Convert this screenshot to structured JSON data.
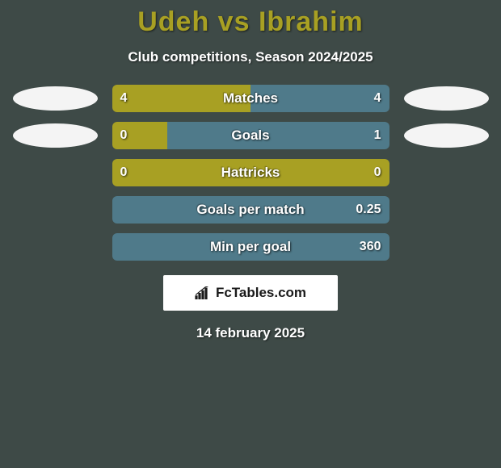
{
  "background_color": "#3e4a47",
  "title": {
    "text": "Udeh vs Ibrahim",
    "color": "#a8a023",
    "fontsize": 34
  },
  "subtitle": {
    "text": "Club competitions, Season 2024/2025",
    "color": "#ffffff",
    "fontsize": 17
  },
  "colors": {
    "left": "#a8a023",
    "right": "#4f7a8a",
    "oval_left": "#f4f4f4",
    "oval_right": "#f4f4f4"
  },
  "stats": [
    {
      "label": "Matches",
      "left_value": "4",
      "right_value": "4",
      "left_pct": 50,
      "right_pct": 50,
      "show_ovals": true,
      "show_left_value": true,
      "show_right_value": true
    },
    {
      "label": "Goals",
      "left_value": "0",
      "right_value": "1",
      "left_pct": 20,
      "right_pct": 80,
      "show_ovals": true,
      "show_left_value": true,
      "show_right_value": true
    },
    {
      "label": "Hattricks",
      "left_value": "0",
      "right_value": "0",
      "left_pct": 100,
      "right_pct": 0,
      "show_ovals": false,
      "show_left_value": true,
      "show_right_value": true
    },
    {
      "label": "Goals per match",
      "left_value": "",
      "right_value": "0.25",
      "left_pct": 0,
      "right_pct": 100,
      "show_ovals": false,
      "show_left_value": false,
      "show_right_value": true
    },
    {
      "label": "Min per goal",
      "left_value": "",
      "right_value": "360",
      "left_pct": 0,
      "right_pct": 100,
      "show_ovals": false,
      "show_left_value": false,
      "show_right_value": true
    }
  ],
  "logo": {
    "text": "FcTables.com",
    "icon_color": "#1a1a1a",
    "bg": "#ffffff"
  },
  "date": "14 february 2025"
}
